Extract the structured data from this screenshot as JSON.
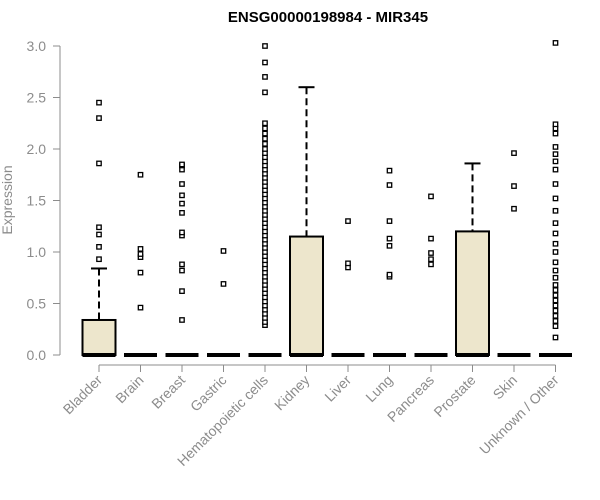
{
  "chart_data": {
    "type": "box",
    "title": "ENSG00000198984 - MIR345",
    "ylabel": "Expression",
    "xlabel": "",
    "ylim": [
      0,
      3.05
    ],
    "yticks": [
      0.0,
      0.5,
      1.0,
      1.5,
      2.0,
      2.5,
      3.0
    ],
    "ytick_labels": [
      "0.0",
      "0.5",
      "1.0",
      "1.5",
      "2.0",
      "2.5",
      "3.0"
    ],
    "box_fill": "#ede6cc",
    "categories": [
      "Bladder",
      "Brain",
      "Breast",
      "Gastric",
      "Hematopoietic cells",
      "Kidney",
      "Liver",
      "Lung",
      "Pancreas",
      "Prostate",
      "Skin",
      "Unknown / Other"
    ],
    "boxes": [
      {
        "q1": 0,
        "median": 0,
        "q3": 0.34,
        "whisker_low": 0,
        "whisker_high": 0.84,
        "outliers": [
          0.93,
          1.05,
          1.17,
          1.24,
          1.86,
          2.3,
          2.45
        ]
      },
      {
        "q1": 0,
        "median": 0,
        "q3": 0,
        "whisker_low": 0,
        "whisker_high": 0,
        "outliers": [
          0.46,
          0.8,
          0.95,
          0.98,
          1.03,
          1.75
        ]
      },
      {
        "q1": 0,
        "median": 0,
        "q3": 0,
        "whisker_low": 0,
        "whisker_high": 0,
        "outliers": [
          0.34,
          0.62,
          0.82,
          0.88,
          1.16,
          1.19,
          1.38,
          1.47,
          1.55,
          1.66,
          1.8,
          1.84,
          1.85
        ]
      },
      {
        "q1": 0,
        "median": 0,
        "q3": 0,
        "whisker_low": 0,
        "whisker_high": 0,
        "outliers": [
          0.69,
          1.01
        ]
      },
      {
        "q1": 0,
        "median": 0,
        "q3": 0,
        "whisker_low": 0,
        "whisker_high": 0,
        "outliers": [
          0.29,
          0.32,
          0.36,
          0.4,
          0.44,
          0.48,
          0.52,
          0.56,
          0.6,
          0.64,
          0.68,
          0.72,
          0.76,
          0.8,
          0.84,
          0.88,
          0.92,
          0.96,
          1.0,
          1.04,
          1.08,
          1.12,
          1.16,
          1.2,
          1.24,
          1.28,
          1.32,
          1.36,
          1.4,
          1.44,
          1.48,
          1.52,
          1.56,
          1.6,
          1.64,
          1.68,
          1.72,
          1.76,
          1.8,
          1.84,
          1.88,
          1.92,
          1.96,
          2.0,
          2.05,
          2.1,
          2.15,
          2.2,
          2.25,
          2.55,
          2.7,
          2.84,
          3.0
        ]
      },
      {
        "q1": 0,
        "median": 0,
        "q3": 1.15,
        "whisker_low": 0,
        "whisker_high": 2.6,
        "outliers": []
      },
      {
        "q1": 0,
        "median": 0,
        "q3": 0,
        "whisker_low": 0,
        "whisker_high": 0,
        "outliers": [
          0.85,
          0.89,
          1.3
        ]
      },
      {
        "q1": 0,
        "median": 0,
        "q3": 0,
        "whisker_low": 0,
        "whisker_high": 0,
        "outliers": [
          0.76,
          0.78,
          1.06,
          1.13,
          1.3,
          1.65,
          1.79
        ]
      },
      {
        "q1": 0,
        "median": 0,
        "q3": 0,
        "whisker_low": 0,
        "whisker_high": 0,
        "outliers": [
          0.88,
          0.93,
          0.99,
          1.13,
          1.54
        ]
      },
      {
        "q1": 0,
        "median": 0,
        "q3": 1.2,
        "whisker_low": 0,
        "whisker_high": 1.86,
        "outliers": []
      },
      {
        "q1": 0,
        "median": 0,
        "q3": 0,
        "whisker_low": 0,
        "whisker_high": 0,
        "outliers": [
          1.42,
          1.64,
          1.96
        ]
      },
      {
        "q1": 0,
        "median": 0,
        "q3": 0,
        "whisker_low": 0,
        "whisker_high": 0,
        "outliers": [
          0.17,
          0.28,
          0.33,
          0.38,
          0.43,
          0.48,
          0.53,
          0.58,
          0.63,
          0.68,
          0.75,
          0.82,
          0.9,
          1.0,
          1.08,
          1.18,
          1.28,
          1.4,
          1.52,
          1.66,
          1.8,
          1.88,
          1.95,
          2.02,
          2.15,
          2.2,
          2.24,
          3.03
        ]
      }
    ]
  }
}
